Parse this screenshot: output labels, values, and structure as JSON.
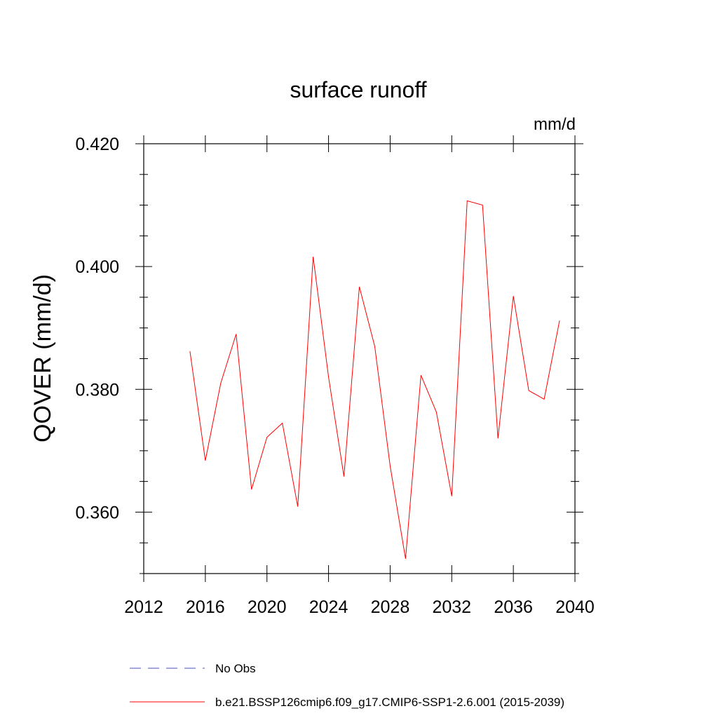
{
  "chart_data": {
    "type": "line",
    "title": "surface runoff",
    "units_label": "mm/d",
    "ylabel": "QOVER  (mm/d)",
    "xlabel": "",
    "xlim": [
      2012,
      2040
    ],
    "ylim": [
      0.35,
      0.42
    ],
    "x_ticks": [
      2012,
      2016,
      2020,
      2024,
      2028,
      2032,
      2036,
      2040
    ],
    "x_tick_labels": [
      "2012",
      "2016",
      "2020",
      "2024",
      "2028",
      "2032",
      "2036",
      "2040"
    ],
    "y_ticks": [
      0.36,
      0.38,
      0.4,
      0.42
    ],
    "y_tick_labels": [
      "0.360",
      "0.380",
      "0.400",
      "0.420"
    ],
    "y_minor_step": 0.005,
    "x_minor_step": 1,
    "series": [
      {
        "name": "b.e21.BSSP126cmip6.f09_g17.CMIP6-SSP1-2.6.001 (2015-2039)",
        "color": "#ff0000",
        "dash": "solid",
        "x": [
          2015,
          2016,
          2017,
          2018,
          2019,
          2020,
          2021,
          2022,
          2023,
          2024,
          2025,
          2026,
          2027,
          2028,
          2029,
          2030,
          2031,
          2032,
          2033,
          2034,
          2035,
          2036,
          2037,
          2038,
          2039
        ],
        "values": [
          0.3862,
          0.3684,
          0.381,
          0.389,
          0.3637,
          0.3722,
          0.3745,
          0.3609,
          0.4016,
          0.382,
          0.3658,
          0.3967,
          0.387,
          0.3675,
          0.3524,
          0.3823,
          0.3763,
          0.3626,
          0.4107,
          0.41,
          0.372,
          0.3952,
          0.3798,
          0.3784,
          0.3912
        ]
      }
    ],
    "legend": {
      "placement": "bottom",
      "entries": [
        {
          "label": "No Obs",
          "color": "#4d4dbf",
          "dash": "dashed"
        },
        {
          "label": "b.e21.BSSP126cmip6.f09_g17.CMIP6-SSP1-2.6.001 (2015-2039)",
          "color": "#ff0000",
          "dash": "solid"
        }
      ]
    }
  }
}
